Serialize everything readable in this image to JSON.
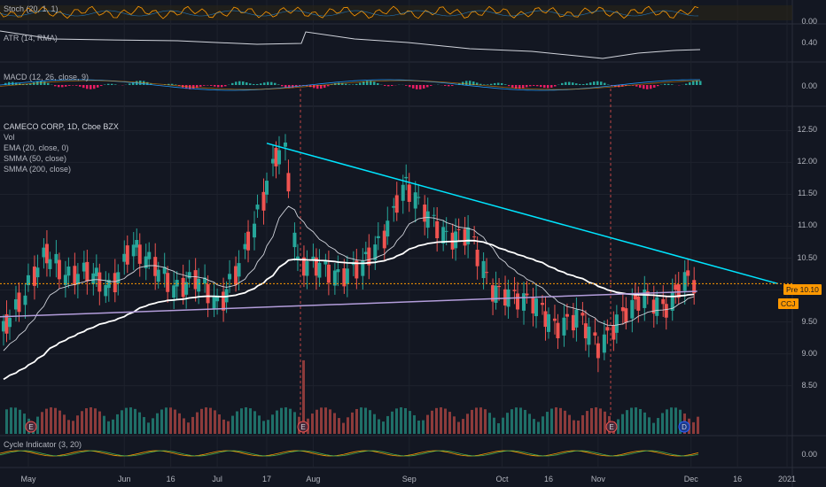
{
  "panes": {
    "stoch_label": "Stoch (20, 1, 1)",
    "atr_label": "ATR (14, RMA)",
    "macd_label": "MACD (12, 26, close, 9)",
    "main_title": "CAMECO CORP, 1D, Cboe BZX",
    "vol_label": "Vol",
    "ema_label": "EMA (20, close, 0)",
    "smma50_label": "SMMA (50, close)",
    "smma200_label": "SMMA (200, close)",
    "cycle_label": "Cycle Indicator (3, 20)"
  },
  "price_axis": {
    "stoch": "0.00",
    "atr": "0.40",
    "macd": "0.00",
    "main": [
      "12.50",
      "12.00",
      "11.50",
      "11.00",
      "10.50",
      "10.00",
      "9.50",
      "9.00",
      "8.50"
    ],
    "cycle": "0.00"
  },
  "badges": {
    "pre_label": "Pre",
    "pre_value": "10.10",
    "symbol": "CCJ"
  },
  "event_markers": [
    "E",
    "E",
    "E",
    "D"
  ],
  "time_axis": [
    "May",
    "Jun",
    "16",
    "Jul",
    "17",
    "Aug",
    "Sep",
    "Oct",
    "16",
    "Nov",
    "Dec",
    "16",
    "2021"
  ],
  "colors": {
    "bg": "#131722",
    "up": "#26a69a",
    "down": "#ef5350",
    "ema": "#d1d4dc",
    "smma50": "#ffffff",
    "smma200": "#b39ddb",
    "trendline": "#00e5ff",
    "pre_line": "#ff9800"
  },
  "chart_data": {
    "type": "candlestick",
    "title": "CAMECO CORP, 1D, Cboe BZX",
    "ylim": [
      8.3,
      12.7
    ],
    "x_range": [
      "2020-04-23",
      "2021-01-05"
    ],
    "close_series": {
      "name": "CCJ",
      "points": [
        [
          "2020-04-23",
          9.35
        ],
        [
          "2020-04-30",
          9.9
        ],
        [
          "2020-05-07",
          10.6
        ],
        [
          "2020-05-14",
          10.2
        ],
        [
          "2020-05-21",
          10.3
        ],
        [
          "2020-05-28",
          10.0
        ],
        [
          "2020-06-04",
          10.7
        ],
        [
          "2020-06-11",
          10.4
        ],
        [
          "2020-06-18",
          10.0
        ],
        [
          "2020-06-25",
          10.2
        ],
        [
          "2020-07-02",
          9.75
        ],
        [
          "2020-07-09",
          10.4
        ],
        [
          "2020-07-16",
          11.4
        ],
        [
          "2020-07-20",
          12.1
        ],
        [
          "2020-07-24",
          12.2
        ],
        [
          "2020-07-27",
          10.4
        ],
        [
          "2020-08-03",
          10.4
        ],
        [
          "2020-08-10",
          10.2
        ],
        [
          "2020-08-17",
          10.4
        ],
        [
          "2020-08-24",
          10.8
        ],
        [
          "2020-08-31",
          11.7
        ],
        [
          "2020-09-07",
          11.2
        ],
        [
          "2020-09-14",
          10.8
        ],
        [
          "2020-09-21",
          10.9
        ],
        [
          "2020-09-28",
          10.0
        ],
        [
          "2020-10-05",
          9.9
        ],
        [
          "2020-10-12",
          9.8
        ],
        [
          "2020-10-19",
          9.4
        ],
        [
          "2020-10-26",
          9.6
        ],
        [
          "2020-11-02",
          9.1
        ],
        [
          "2020-11-09",
          9.6
        ],
        [
          "2020-11-16",
          9.9
        ],
        [
          "2020-11-23",
          9.7
        ],
        [
          "2020-11-30",
          10.2
        ],
        [
          "2020-12-03",
          10.1
        ]
      ]
    },
    "trendline": {
      "from": [
        "2020-07-17",
        12.3
      ],
      "to": [
        "2020-12-29",
        10.1
      ]
    },
    "smma200": {
      "from": [
        "2020-04-23",
        9.58
      ],
      "to": [
        "2020-12-03",
        9.98
      ]
    },
    "pre_market_price": 10.1
  }
}
